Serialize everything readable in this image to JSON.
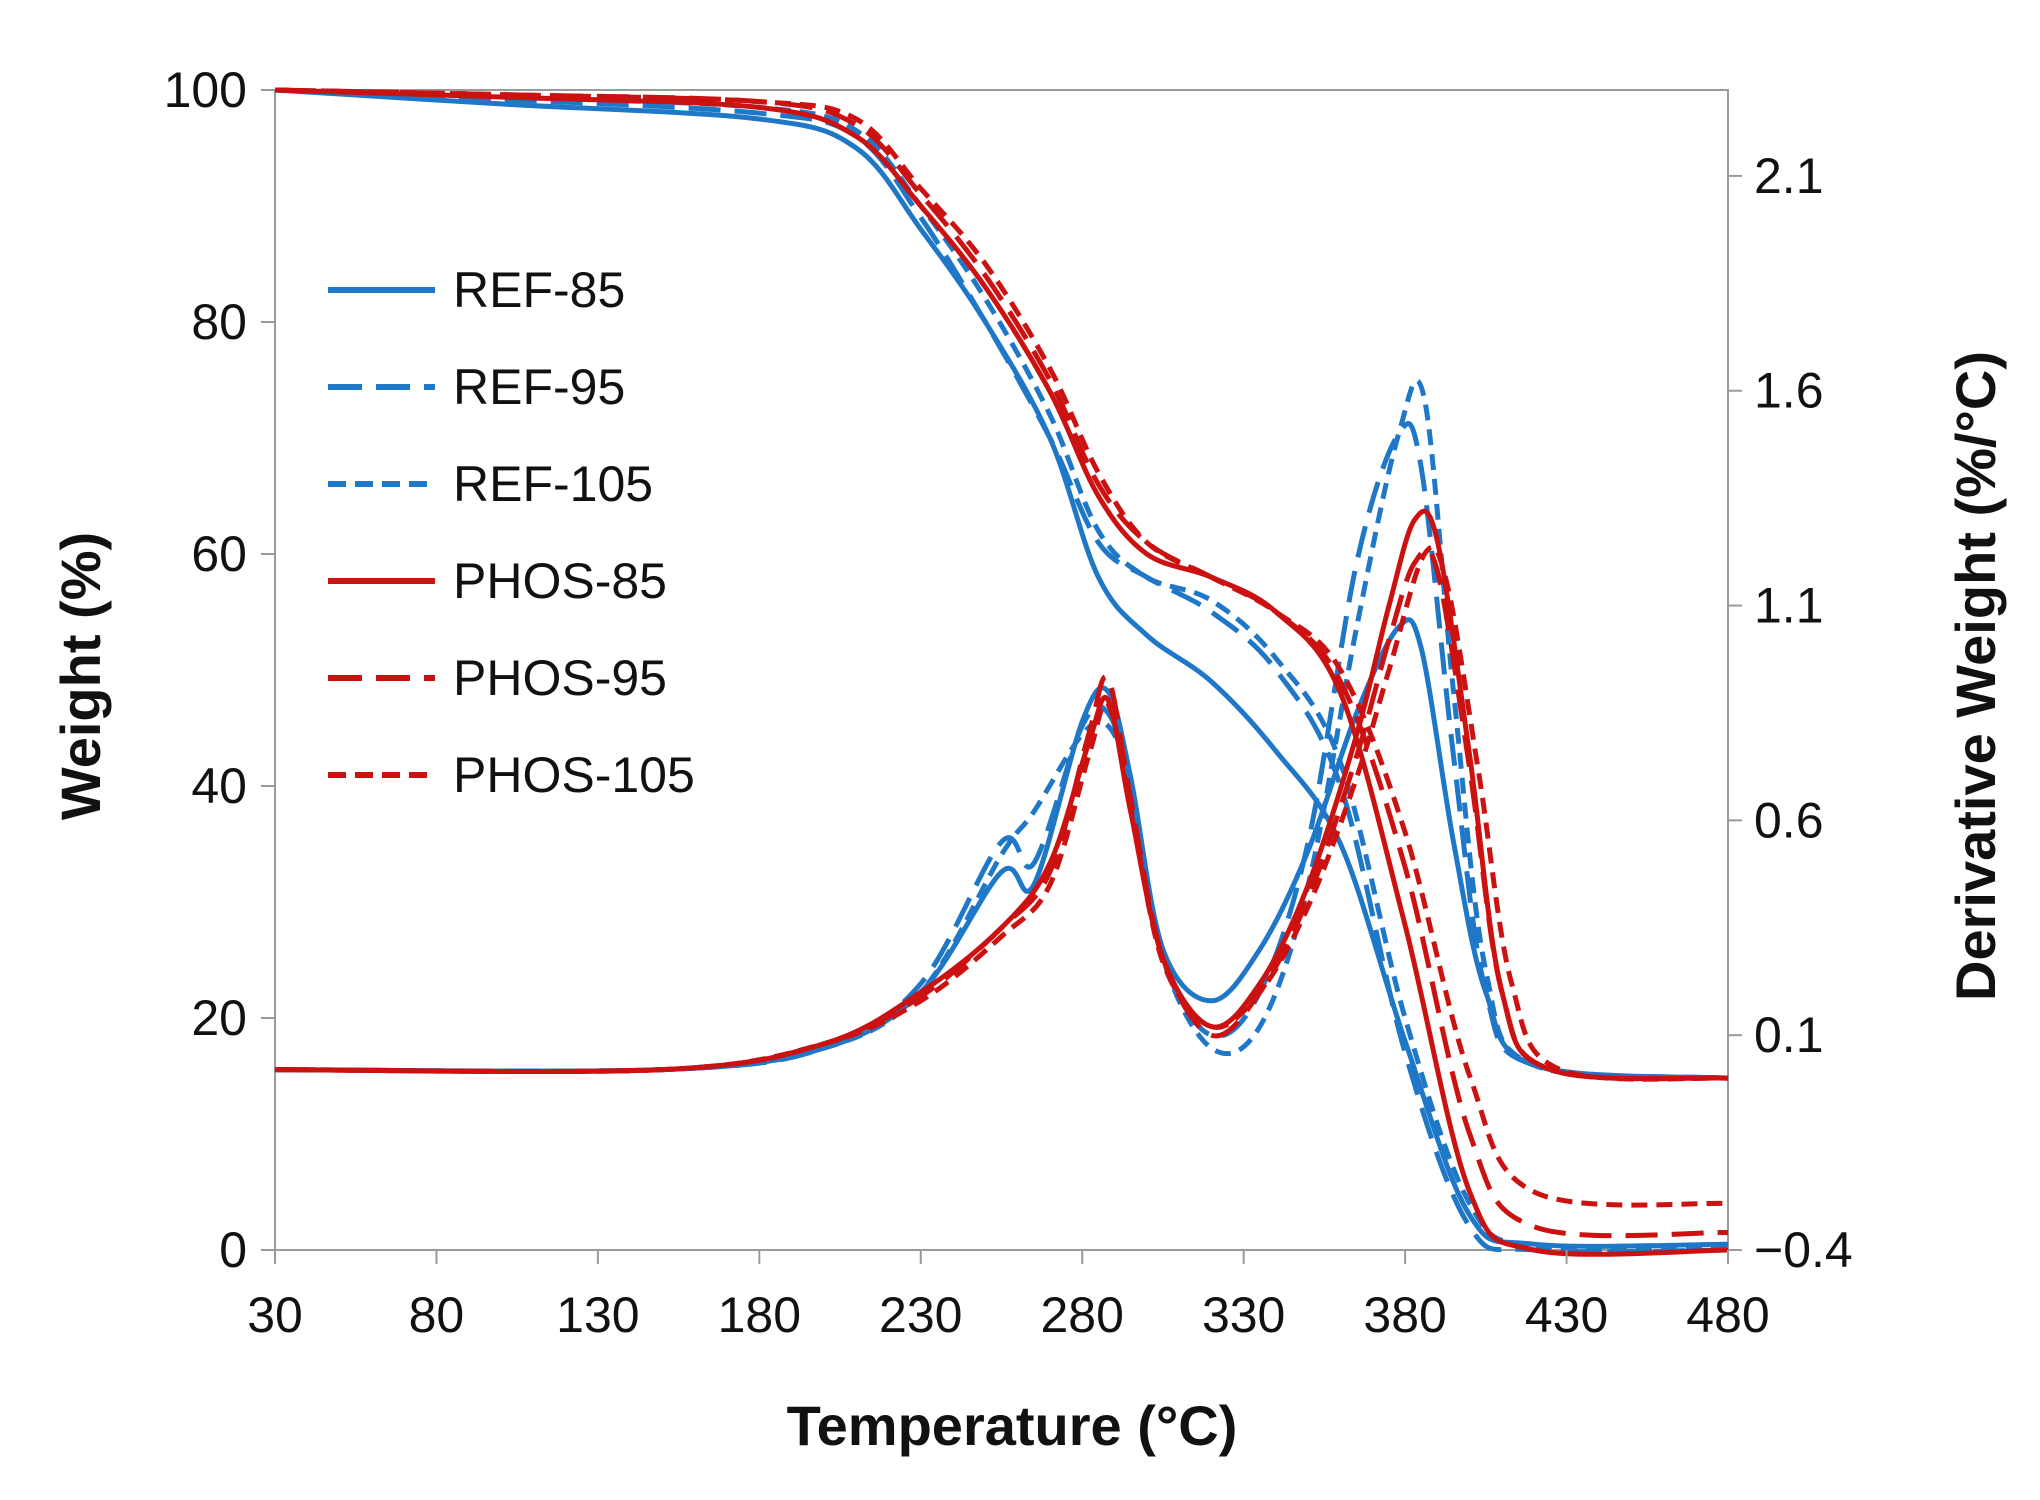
{
  "chart_data": {
    "type": "line",
    "title": "",
    "xlabel": "Temperature (°C)",
    "ylabel": "Weight (%)",
    "y2label": "Derivative Weight (%/°C)",
    "xlim": [
      30,
      480
    ],
    "ylim": [
      0,
      100
    ],
    "y2lim": [
      -0.4,
      2.3
    ],
    "xticks": [
      30,
      80,
      130,
      180,
      230,
      280,
      330,
      380,
      430,
      480
    ],
    "yticks": [
      0,
      20,
      40,
      60,
      80,
      100
    ],
    "y2ticks": [
      -0.4,
      0.1,
      0.6,
      1.1,
      1.6,
      2.1
    ],
    "y2tick_labels": [
      "−0.4",
      "0.1",
      "0.6",
      "1.1",
      "1.6",
      "2.1"
    ],
    "legend_position": "left",
    "colors": {
      "blue": "#1f77c8",
      "red": "#cc1111"
    },
    "series": [
      {
        "name": "REF-85",
        "color": "#1f77c8",
        "dash": "solid",
        "weight": {
          "x": [
            30,
            100,
            180,
            210,
            230,
            250,
            270,
            285,
            300,
            320,
            340,
            360,
            380,
            400,
            420,
            480
          ],
          "y": [
            100,
            98.8,
            97.5,
            95,
            88,
            80,
            70,
            58,
            53,
            49,
            43,
            35,
            18,
            3,
            0.5,
            0.5
          ]
        },
        "derivative": {
          "x": [
            30,
            150,
            200,
            230,
            255,
            265,
            280,
            288,
            295,
            305,
            320,
            335,
            350,
            365,
            378,
            385,
            395,
            405,
            420,
            480
          ],
          "y": [
            0.02,
            0.02,
            0.07,
            0.2,
            0.48,
            0.45,
            0.83,
            0.9,
            0.7,
            0.3,
            0.18,
            0.3,
            0.53,
            0.85,
            1.05,
            1.0,
            0.55,
            0.2,
            0.03,
            0.0
          ]
        }
      },
      {
        "name": "REF-95",
        "color": "#1f77c8",
        "dash": "long",
        "weight": {
          "x": [
            30,
            100,
            180,
            210,
            230,
            250,
            270,
            285,
            300,
            320,
            340,
            360,
            380,
            400,
            420,
            480
          ],
          "y": [
            100,
            99.2,
            98,
            96,
            89,
            80,
            70,
            61,
            58,
            55,
            50,
            40,
            17,
            2,
            0,
            0
          ]
        },
        "derivative": {
          "x": [
            30,
            150,
            200,
            230,
            255,
            265,
            280,
            288,
            295,
            305,
            320,
            335,
            350,
            365,
            378,
            385,
            395,
            405,
            420,
            480
          ],
          "y": [
            0.02,
            0.02,
            0.07,
            0.22,
            0.55,
            0.5,
            0.82,
            0.85,
            0.68,
            0.28,
            0.1,
            0.2,
            0.55,
            1.2,
            1.5,
            1.42,
            0.75,
            0.2,
            0.03,
            0.0
          ]
        }
      },
      {
        "name": "REF-105",
        "color": "#1f77c8",
        "dash": "short",
        "weight": {
          "x": [
            30,
            100,
            180,
            210,
            230,
            250,
            270,
            285,
            300,
            320,
            340,
            360,
            380,
            400,
            420,
            480
          ],
          "y": [
            100,
            99.4,
            98.5,
            96.5,
            90,
            82,
            72,
            62,
            58,
            56,
            51,
            42,
            20,
            4,
            0.3,
            0.3
          ]
        },
        "derivative": {
          "x": [
            30,
            150,
            200,
            230,
            255,
            265,
            280,
            288,
            295,
            305,
            320,
            335,
            350,
            365,
            378,
            386,
            395,
            405,
            420,
            480
          ],
          "y": [
            0.02,
            0.02,
            0.07,
            0.2,
            0.52,
            0.62,
            0.8,
            0.82,
            0.68,
            0.28,
            0.07,
            0.12,
            0.45,
            1.05,
            1.5,
            1.58,
            0.9,
            0.25,
            0.03,
            0.0
          ]
        }
      },
      {
        "name": "PHOS-85",
        "color": "#cc1111",
        "dash": "solid",
        "weight": {
          "x": [
            30,
            100,
            180,
            210,
            230,
            250,
            270,
            285,
            300,
            320,
            340,
            360,
            380,
            400,
            420,
            480
          ],
          "y": [
            100,
            99.4,
            98.5,
            96,
            90,
            83,
            74,
            65,
            60,
            58,
            55,
            48,
            28,
            5,
            0,
            0
          ]
        },
        "derivative": {
          "x": [
            30,
            150,
            200,
            230,
            255,
            270,
            282,
            288,
            295,
            305,
            320,
            335,
            350,
            365,
            375,
            383,
            390,
            400,
            410,
            425,
            480
          ],
          "y": [
            0.02,
            0.02,
            0.08,
            0.2,
            0.35,
            0.5,
            0.78,
            0.88,
            0.62,
            0.28,
            0.12,
            0.22,
            0.45,
            0.8,
            1.1,
            1.3,
            1.25,
            0.75,
            0.2,
            0.02,
            0.0
          ]
        }
      },
      {
        "name": "PHOS-95",
        "color": "#cc1111",
        "dash": "long",
        "weight": {
          "x": [
            30,
            100,
            180,
            210,
            230,
            250,
            270,
            285,
            300,
            320,
            340,
            360,
            380,
            400,
            420,
            480
          ],
          "y": [
            100,
            99.6,
            99,
            97,
            91,
            84,
            75,
            66,
            61,
            58,
            55,
            49,
            33,
            10,
            2,
            1.5
          ]
        },
        "derivative": {
          "x": [
            30,
            150,
            200,
            230,
            255,
            270,
            282,
            288,
            295,
            305,
            320,
            335,
            350,
            365,
            375,
            383,
            390,
            400,
            410,
            425,
            480
          ],
          "y": [
            0.02,
            0.02,
            0.08,
            0.19,
            0.35,
            0.48,
            0.8,
            0.93,
            0.65,
            0.28,
            0.1,
            0.2,
            0.42,
            0.75,
            1.02,
            1.2,
            1.18,
            0.72,
            0.2,
            0.02,
            0.0
          ]
        }
      },
      {
        "name": "PHOS-105",
        "color": "#cc1111",
        "dash": "short",
        "weight": {
          "x": [
            30,
            100,
            180,
            210,
            230,
            250,
            270,
            285,
            300,
            320,
            340,
            360,
            380,
            400,
            420,
            480
          ],
          "y": [
            100,
            99.6,
            99,
            97.5,
            91.5,
            85,
            76,
            67,
            61,
            58,
            55,
            50,
            36,
            15,
            5,
            4
          ]
        },
        "derivative": {
          "x": [
            30,
            150,
            200,
            230,
            255,
            270,
            282,
            288,
            295,
            305,
            320,
            335,
            350,
            365,
            375,
            386,
            393,
            403,
            413,
            428,
            480
          ],
          "y": [
            0.02,
            0.02,
            0.08,
            0.18,
            0.33,
            0.45,
            0.75,
            0.87,
            0.63,
            0.27,
            0.12,
            0.2,
            0.4,
            0.7,
            0.95,
            1.22,
            1.15,
            0.7,
            0.22,
            0.02,
            0.0
          ]
        }
      }
    ]
  }
}
